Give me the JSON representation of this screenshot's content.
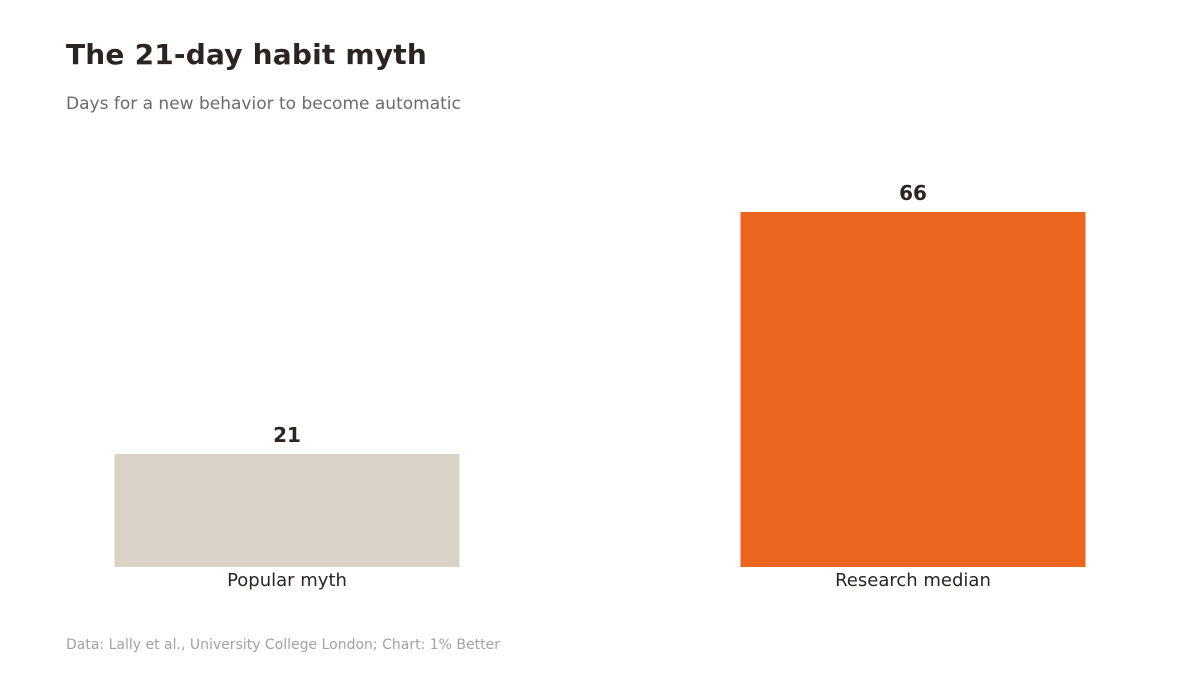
{
  "header": {
    "title": "The 21-day habit myth",
    "subtitle": "Days for a new behavior to become automatic"
  },
  "footer": {
    "source": "Data: Lally et al., University College London; Chart: 1% Better"
  },
  "colors": {
    "myth_bar": "#d9d3c7",
    "research_bar": "#eb651f",
    "text_dark": "#2b2420",
    "text_muted": "#6b6b6b",
    "text_light": "#a2a2a2"
  },
  "chart_data": {
    "type": "bar",
    "categories": [
      "Popular myth",
      "Research median"
    ],
    "values": [
      21,
      66
    ],
    "bar_colors": [
      "#d9d3c7",
      "#eb651f"
    ],
    "ylim": [
      0,
      66
    ],
    "grid": false,
    "legend": "none",
    "data_labels": [
      "21",
      "66"
    ]
  }
}
